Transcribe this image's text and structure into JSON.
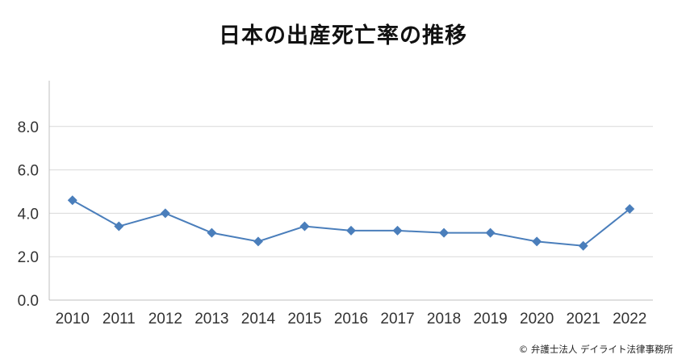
{
  "chart_data": {
    "type": "line",
    "title": "日本の出産死亡率の推移",
    "x": [
      2010,
      2011,
      2012,
      2013,
      2014,
      2015,
      2016,
      2017,
      2018,
      2019,
      2020,
      2021,
      2022
    ],
    "x_tick_labels": [
      "2010",
      "2011",
      "2012",
      "2013",
      "2014",
      "2015",
      "2016",
      "2017",
      "2018",
      "2019",
      "2020",
      "2021",
      "2022"
    ],
    "series": [
      {
        "values": [
          4.6,
          3.4,
          4.0,
          3.1,
          2.7,
          3.4,
          3.2,
          3.2,
          3.1,
          3.1,
          2.7,
          2.5,
          4.2
        ]
      }
    ],
    "ylim": [
      0,
      10
    ],
    "y_ticks": [
      0,
      2,
      4,
      6,
      8
    ],
    "y_tick_labels": [
      "0.0",
      "2.0",
      "4.0",
      "6.0",
      "8.0"
    ],
    "xlabel": "",
    "ylabel": "",
    "grid": true,
    "marker": "diamond",
    "line_color": "#4a7ebb"
  },
  "credit": "© 弁護士法人 デイライト法律事務所"
}
